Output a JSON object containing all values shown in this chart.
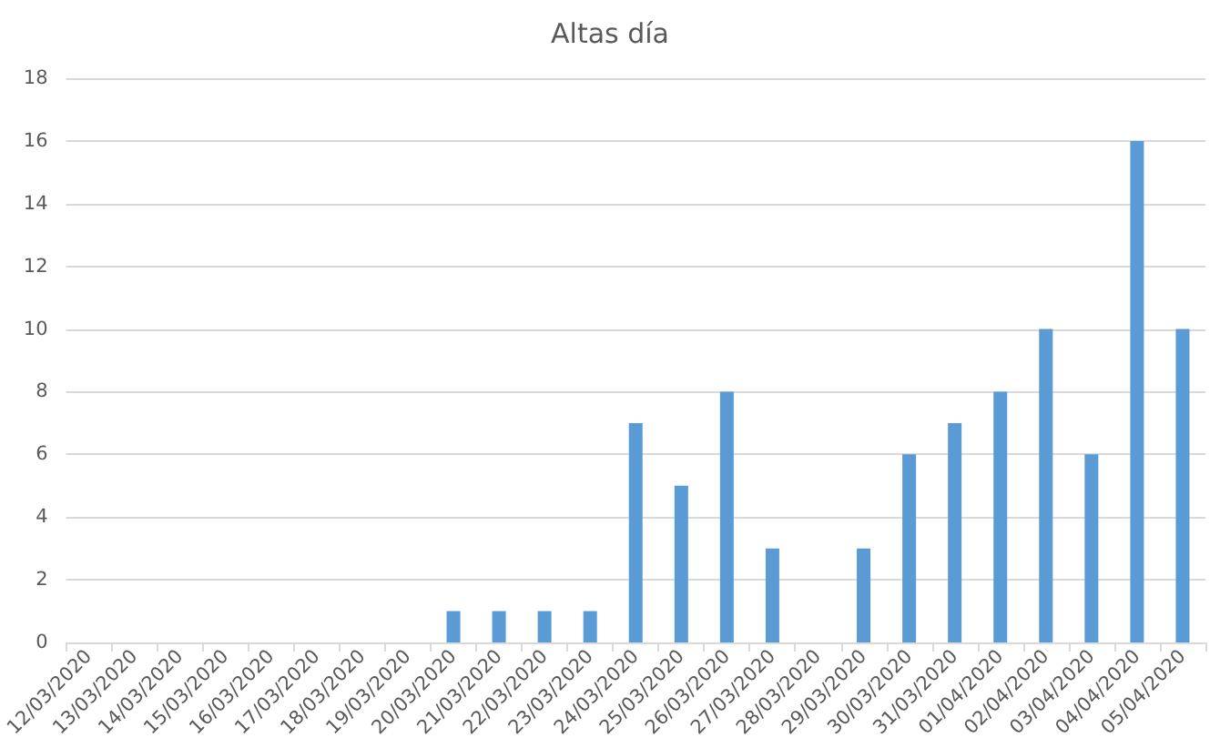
{
  "chart_data": {
    "type": "bar",
    "title": "Altas día",
    "categories": [
      "12/03/2020",
      "13/03/2020",
      "14/03/2020",
      "15/03/2020",
      "16/03/2020",
      "17/03/2020",
      "18/03/2020",
      "19/03/2020",
      "20/03/2020",
      "21/03/2020",
      "22/03/2020",
      "23/03/2020",
      "24/03/2020",
      "25/03/2020",
      "26/03/2020",
      "27/03/2020",
      "28/03/2020",
      "29/03/2020",
      "30/03/2020",
      "31/03/2020",
      "01/04/2020",
      "02/04/2020",
      "03/04/2020",
      "04/04/2020",
      "05/04/2020"
    ],
    "values": [
      0,
      0,
      0,
      0,
      0,
      0,
      0,
      0,
      1,
      1,
      1,
      1,
      7,
      5,
      8,
      3,
      0,
      3,
      6,
      7,
      8,
      10,
      6,
      16,
      10
    ],
    "color": "#5b9bd5",
    "ylim": [
      0,
      18
    ],
    "yticks": [
      0,
      2,
      4,
      6,
      8,
      10,
      12,
      14,
      16,
      18
    ],
    "grid": "y"
  }
}
